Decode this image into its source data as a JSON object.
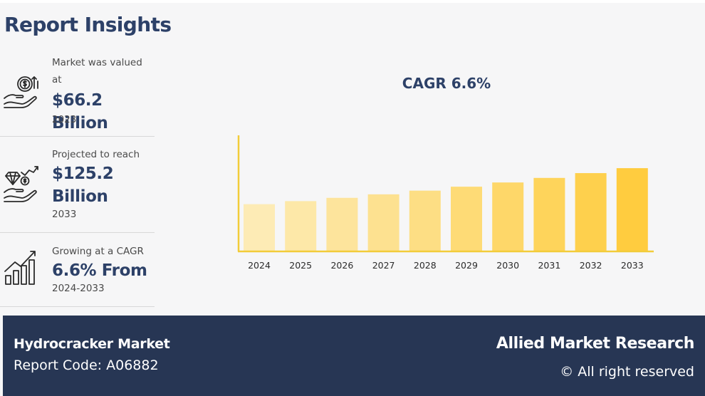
{
  "header": {
    "title": "Report Insights"
  },
  "insights": [
    {
      "label": "Market was valued at",
      "value": "$66.2 Billion",
      "sub": "2023",
      "icon": "money-hand-icon"
    },
    {
      "label": "Projected to reach",
      "value": "$125.2 Billion",
      "sub": "2033",
      "icon": "diamond-coin-growth-icon"
    },
    {
      "label": "Growing at a CAGR",
      "value": "6.6% From",
      "sub": "2024-2033",
      "icon": "growth-bars-icon"
    }
  ],
  "chart_data": {
    "type": "bar",
    "title": "CAGR 6.6%",
    "categories": [
      "2024",
      "2025",
      "2026",
      "2027",
      "2028",
      "2029",
      "2030",
      "2031",
      "2032",
      "2033"
    ],
    "values": [
      70.6,
      75.2,
      80.2,
      85.5,
      91.1,
      97.1,
      103.5,
      110.4,
      117.7,
      125.2
    ],
    "ylim": [
      0,
      175
    ],
    "grid": false,
    "legend": "none",
    "colors": [
      "#fdebb5",
      "#fde8a8",
      "#fde49c",
      "#fde190",
      "#fdde84",
      "#fedb76",
      "#fed769",
      "#fed45b",
      "#fed04d",
      "#ffcc3f"
    ],
    "axis_color": "#f2cc3a"
  },
  "footer": {
    "market_name": "Hydrocracker Market",
    "report_code": "Report Code: A06882",
    "brand": "Allied Market Research",
    "rights": "© All right reserved"
  }
}
